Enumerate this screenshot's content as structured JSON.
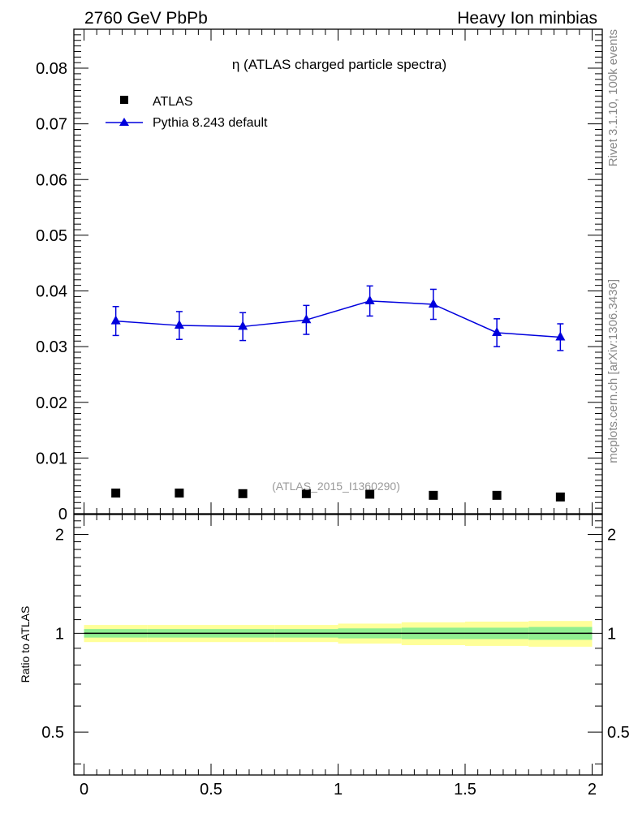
{
  "header": {
    "left": "2760 GeV PbPb",
    "right": "Heavy Ion minbias"
  },
  "side_text": {
    "top": "Rivet 3.1.10,  100k events",
    "bottom": "mcplots.cern.ch [arXiv:1306.3436]"
  },
  "chart_data": [
    {
      "type": "scatter",
      "title": "η (ATLAS charged particle spectra)",
      "watermark": "(ATLAS_2015_I1360290)",
      "xlim": [
        -0.04,
        2.04
      ],
      "ylim": [
        0,
        0.087
      ],
      "yticks": [
        "0",
        "0.01",
        "0.02",
        "0.03",
        "0.04",
        "0.05",
        "0.06",
        "0.07",
        "0.08"
      ],
      "legend_position": "top-left",
      "series": [
        {
          "name": "ATLAS",
          "marker": "square",
          "color": "#000000",
          "x": [
            0.125,
            0.375,
            0.625,
            0.875,
            1.125,
            1.375,
            1.625,
            1.875
          ],
          "y": [
            0.0037,
            0.0037,
            0.0036,
            0.0036,
            0.0035,
            0.0033,
            0.0033,
            0.003
          ]
        },
        {
          "name": "Pythia 8.243 default",
          "marker": "triangle",
          "color": "#0000dd",
          "x": [
            0.125,
            0.375,
            0.625,
            0.875,
            1.125,
            1.375,
            1.625,
            1.875
          ],
          "y": [
            0.0346,
            0.0338,
            0.0336,
            0.0348,
            0.0382,
            0.0376,
            0.0325,
            0.0317
          ],
          "yerr": [
            0.0026,
            0.0025,
            0.0025,
            0.0026,
            0.0027,
            0.0027,
            0.0025,
            0.0024
          ]
        }
      ]
    },
    {
      "type": "area",
      "ylabel": "Ratio to ATLAS",
      "xlim": [
        -0.04,
        2.04
      ],
      "ylim": [
        0.37,
        2.3
      ],
      "yscale": "log",
      "xticks": [
        "0",
        "0.5",
        "1",
        "1.5",
        "2"
      ],
      "yticks": [
        "0.5",
        "1",
        "2"
      ],
      "bins": [
        0,
        0.25,
        0.5,
        0.75,
        1.0,
        1.25,
        1.5,
        1.75,
        2.0
      ],
      "reference": 1.0,
      "band_inner": [
        [
          0.97,
          1.03
        ],
        [
          0.97,
          1.03
        ],
        [
          0.97,
          1.03
        ],
        [
          0.97,
          1.03
        ],
        [
          0.965,
          1.035
        ],
        [
          0.96,
          1.04
        ],
        [
          0.96,
          1.04
        ],
        [
          0.955,
          1.045
        ]
      ],
      "band_outer": [
        [
          0.94,
          1.06
        ],
        [
          0.94,
          1.06
        ],
        [
          0.94,
          1.06
        ],
        [
          0.94,
          1.06
        ],
        [
          0.93,
          1.07
        ],
        [
          0.92,
          1.08
        ],
        [
          0.915,
          1.085
        ],
        [
          0.91,
          1.09
        ]
      ],
      "band_colors": {
        "inner": "#90ee90",
        "outer": "#ffff99"
      }
    }
  ]
}
